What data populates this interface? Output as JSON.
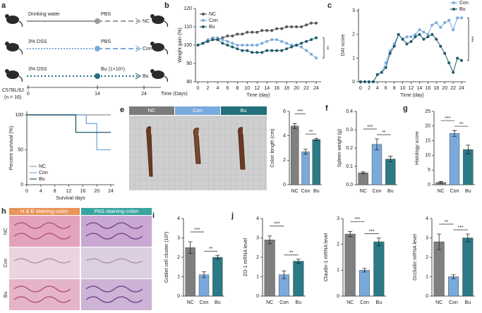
{
  "schematic": {
    "panel": "a",
    "rows": [
      {
        "start": "Drinking water",
        "treatment": "PBS",
        "group": "NC"
      },
      {
        "start": "3% DSS",
        "treatment": "PBS",
        "group": "Con"
      },
      {
        "start": "3% DSS",
        "treatment": "Bu (1×10⁹)",
        "group": "Bu"
      }
    ],
    "timeline": [
      "0",
      "14",
      "24"
    ],
    "time_label": "Time (Days)",
    "strain": "C57BL/6J",
    "n": "(n = 16)"
  },
  "colon_images": {
    "panel": "e",
    "headers": [
      "NC",
      "Con",
      "Bu"
    ]
  },
  "histology_images": {
    "panel": "h",
    "headers": [
      "H & E staining-colon",
      "PAS staining-colon"
    ],
    "rows": [
      "NC",
      "Con",
      "Bu"
    ]
  },
  "chart_data": [
    {
      "type": "line",
      "panel": "b",
      "xlabel": "Time (day)",
      "ylabel": "Weight gain (%)",
      "x": [
        0,
        1,
        2,
        3,
        4,
        5,
        6,
        7,
        8,
        9,
        10,
        11,
        12,
        13,
        14,
        15,
        16,
        17,
        18,
        19,
        20,
        21,
        22,
        23,
        24
      ],
      "xlim": [
        -0.5,
        25
      ],
      "xticks": [
        0,
        2,
        4,
        6,
        8,
        10,
        12,
        14,
        16,
        18,
        20,
        22,
        24
      ],
      "ylim": [
        80,
        120
      ],
      "yticks": [
        80,
        90,
        100,
        110,
        120
      ],
      "legend": "upper left",
      "markers": true,
      "annotation": "**",
      "series": [
        {
          "name": "NC",
          "color": "#555555",
          "values": [
            100,
            101,
            102,
            103,
            103,
            104,
            105,
            105,
            106,
            106,
            107,
            107,
            107,
            108,
            108,
            108,
            109,
            109,
            110,
            110,
            110,
            110,
            111,
            112,
            112
          ]
        },
        {
          "name": "Con",
          "color": "#7aa9dc",
          "values": [
            100,
            101,
            103,
            104,
            104,
            103,
            102,
            101,
            100,
            100,
            100,
            100,
            100,
            101,
            102,
            103,
            103,
            102,
            101,
            100,
            100,
            99,
            97,
            95,
            93
          ]
        },
        {
          "name": "Bu",
          "color": "#1e5a66",
          "values": [
            100,
            101,
            102,
            103,
            103,
            101,
            100,
            99,
            98,
            97,
            97,
            96,
            96,
            96,
            97,
            97,
            97,
            97,
            98,
            99,
            100,
            101,
            102,
            103,
            104
          ]
        }
      ]
    },
    {
      "type": "line",
      "panel": "c",
      "xlabel": "Time (day)",
      "ylabel": "DAI score",
      "x": [
        0,
        1,
        2,
        3,
        4,
        5,
        6,
        7,
        8,
        9,
        10,
        11,
        12,
        13,
        14,
        15,
        16,
        17,
        18,
        19,
        20,
        21,
        22,
        23,
        24
      ],
      "xlim": [
        -0.5,
        25
      ],
      "xticks": [
        0,
        2,
        4,
        6,
        8,
        10,
        12,
        14,
        16,
        18,
        20,
        22,
        24
      ],
      "ylim": [
        0,
        3.1
      ],
      "yticks": [
        0,
        1,
        2,
        3
      ],
      "legend": "upper right",
      "markers": true,
      "annotation": "***",
      "series": [
        {
          "name": "Con",
          "color": "#7aa9dc",
          "values": [
            0,
            0,
            0,
            0,
            0.3,
            0.4,
            0.8,
            1.3,
            1.6,
            2.0,
            1.8,
            1.9,
            1.9,
            2.0,
            2.2,
            2.1,
            2.0,
            2.4,
            2.5,
            2.3,
            2.5,
            2.6,
            2.2,
            2.7,
            2.7
          ]
        },
        {
          "name": "Bu",
          "color": "#1e5a66",
          "values": [
            0,
            0,
            0,
            0,
            0.3,
            0.4,
            0.6,
            1.2,
            1.5,
            2.0,
            1.8,
            1.6,
            1.7,
            1.9,
            2.0,
            1.8,
            1.9,
            2.0,
            1.8,
            1.5,
            1.2,
            0.8,
            0.4,
            1.0,
            0.9
          ]
        }
      ]
    },
    {
      "type": "line",
      "panel": "d",
      "xlabel": "Survival days",
      "ylabel": "Percent survival (%)",
      "xlim": [
        0,
        25
      ],
      "xticks": [
        0,
        4,
        8,
        12,
        16,
        20,
        24
      ],
      "ylim": [
        0,
        105
      ],
      "yticks": [
        0,
        50,
        100
      ],
      "legend": "lower left",
      "markers": false,
      "series": [
        {
          "name": "NC",
          "color": "#999999",
          "x": [
            0,
            24
          ],
          "values": [
            100,
            100
          ]
        },
        {
          "name": "Con",
          "color": "#7aa9dc",
          "x": [
            0,
            17,
            17,
            20,
            20,
            24
          ],
          "values": [
            100,
            100,
            87.5,
            87.5,
            50,
            50
          ]
        },
        {
          "name": "Bu",
          "color": "#1e5a66",
          "x": [
            0,
            14,
            14,
            24
          ],
          "values": [
            100,
            100,
            75,
            75
          ]
        }
      ]
    },
    {
      "type": "bar",
      "ylabel": "Colon length (cm)",
      "categories": [
        "NC",
        "Con",
        "Bu"
      ],
      "values": [
        4.8,
        2.7,
        3.7
      ],
      "errors": [
        0.2,
        0.2,
        0.1
      ],
      "colors": [
        "#7f7f7f",
        "#7aa9dc",
        "#2b7a86"
      ],
      "ylim": [
        0,
        6
      ],
      "yticks": [
        0,
        2,
        4,
        6
      ],
      "significance": [
        "***",
        "**"
      ]
    },
    {
      "type": "bar",
      "panel": "f",
      "ylabel": "Spleen weight (g)",
      "categories": [
        "NC",
        "Con",
        "Bu"
      ],
      "values": [
        0.065,
        0.22,
        0.14
      ],
      "errors": [
        0.005,
        0.03,
        0.015
      ],
      "colors": [
        "#7f7f7f",
        "#7aa9dc",
        "#2b7a86"
      ],
      "ylim": [
        0,
        0.4
      ],
      "yticks": [
        {
          "value": 0,
          "label": "0.0"
        },
        0.1,
        0.2,
        0.3,
        0.4
      ],
      "significance": [
        "***",
        "**"
      ]
    },
    {
      "type": "bar",
      "panel": "g",
      "ylabel": "Histology score",
      "categories": [
        "NC",
        "Con",
        "Bu"
      ],
      "values": [
        0.8,
        17.5,
        12
      ],
      "errors": [
        0.3,
        1,
        1.5
      ],
      "colors": [
        "#7f7f7f",
        "#7aa9dc",
        "#2b7a86"
      ],
      "ylim": [
        0,
        25
      ],
      "yticks": [
        0,
        5,
        10,
        15,
        20,
        25
      ],
      "significance": [
        "***",
        "**"
      ]
    },
    {
      "type": "bar",
      "panel": "i",
      "ylabel": "Goblet cell cluster (10²)",
      "categories": [
        "NC",
        "Con",
        "Bu"
      ],
      "values": [
        2.5,
        1.1,
        2.0
      ],
      "errors": [
        0.3,
        0.15,
        0.1
      ],
      "colors": [
        "#7f7f7f",
        "#7aa9dc",
        "#2b7a86"
      ],
      "ylim": [
        0,
        4
      ],
      "yticks": [
        0,
        1,
        2,
        3,
        4
      ],
      "significance": [
        "***",
        "**"
      ]
    },
    {
      "type": "bar",
      "panel": "j",
      "ylabel": "ZO-1 mRNA level",
      "categories": [
        "NC",
        "Con",
        "Bu"
      ],
      "values": [
        2.9,
        1.1,
        1.8
      ],
      "errors": [
        0.2,
        0.2,
        0.1
      ],
      "colors": [
        "#7f7f7f",
        "#7aa9dc",
        "#2b7a86"
      ],
      "ylim": [
        0,
        4
      ],
      "yticks": [
        0,
        1,
        2,
        3,
        4
      ],
      "significance": [
        "***",
        "**"
      ]
    },
    {
      "type": "bar",
      "ylabel": "Claudin-1 mRNA level",
      "categories": [
        "NC",
        "Con",
        "Bu"
      ],
      "values": [
        2.4,
        1.0,
        2.1
      ],
      "errors": [
        0.1,
        0.07,
        0.15
      ],
      "colors": [
        "#7f7f7f",
        "#7aa9dc",
        "#2b7a86"
      ],
      "ylim": [
        0,
        3
      ],
      "yticks": [
        0,
        1,
        2,
        3
      ],
      "significance": [
        "***",
        "***"
      ]
    },
    {
      "type": "bar",
      "ylabel": "Occludin mRNA level",
      "categories": [
        "NC",
        "Con",
        "Bu"
      ],
      "values": [
        2.8,
        1.0,
        3.0
      ],
      "errors": [
        0.4,
        0.1,
        0.2
      ],
      "colors": [
        "#7f7f7f",
        "#7aa9dc",
        "#2b7a86"
      ],
      "ylim": [
        0,
        4
      ],
      "yticks": [
        0,
        1,
        2,
        3,
        4
      ],
      "significance": [
        "**",
        "***"
      ]
    }
  ]
}
